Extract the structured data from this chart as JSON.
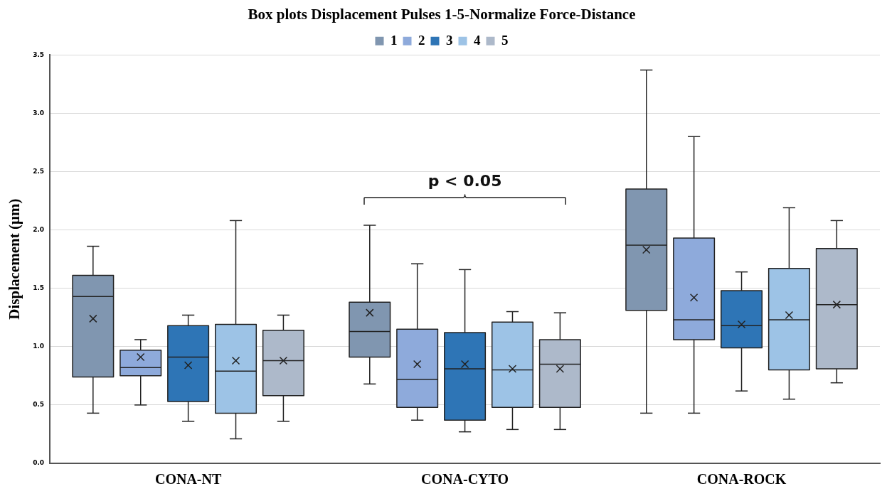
{
  "chart_data": {
    "type": "box",
    "title": "Box plots Displacement Pulses 1-5-Normalize Force-Distance",
    "ylabel": "Displacement (µm)",
    "categories": [
      "CONA-NT",
      "CONA-CYTO",
      "CONA-ROCK"
    ],
    "ylim": [
      0,
      3.5
    ],
    "yticks": [
      {
        "value": 0,
        "label": "0.0"
      },
      {
        "value": 0.5,
        "label": "0.5"
      },
      {
        "value": 1,
        "label": "1.0"
      },
      {
        "value": 1.5,
        "label": "1.5"
      },
      {
        "value": 2,
        "label": "2.0"
      },
      {
        "value": 2.5,
        "label": "2.5"
      },
      {
        "value": 3,
        "label": "3.0"
      },
      {
        "value": 3.5,
        "label": "3.5"
      }
    ],
    "grid": "y",
    "legend": "top",
    "annotations": [
      "p < 0.05"
    ],
    "series": [
      {
        "name": "1",
        "color": "#8096b0",
        "boxes": [
          {
            "low": 0.43,
            "q1": 0.74,
            "median": 1.43,
            "q3": 1.61,
            "high": 1.86,
            "mean": 1.24
          },
          {
            "low": 0.68,
            "q1": 0.91,
            "median": 1.13,
            "q3": 1.38,
            "high": 2.04,
            "mean": 1.29
          },
          {
            "low": 0.43,
            "q1": 1.31,
            "median": 1.87,
            "q3": 2.35,
            "high": 3.37,
            "mean": 1.83
          }
        ]
      },
      {
        "name": "2",
        "color": "#8eaadb",
        "boxes": [
          {
            "low": 0.5,
            "q1": 0.75,
            "median": 0.82,
            "q3": 0.97,
            "high": 1.06,
            "mean": 0.91
          },
          {
            "low": 0.37,
            "q1": 0.48,
            "median": 0.72,
            "q3": 1.15,
            "high": 1.71,
            "mean": 0.85
          },
          {
            "low": 0.43,
            "q1": 1.06,
            "median": 1.23,
            "q3": 1.93,
            "high": 2.8,
            "mean": 1.42
          }
        ]
      },
      {
        "name": "3",
        "color": "#2e75b6",
        "boxes": [
          {
            "low": 0.36,
            "q1": 0.53,
            "median": 0.91,
            "q3": 1.18,
            "high": 1.27,
            "mean": 0.84
          },
          {
            "low": 0.27,
            "q1": 0.37,
            "median": 0.81,
            "q3": 1.12,
            "high": 1.66,
            "mean": 0.85
          },
          {
            "low": 0.62,
            "q1": 0.99,
            "median": 1.18,
            "q3": 1.48,
            "high": 1.64,
            "mean": 1.19
          }
        ]
      },
      {
        "name": "4",
        "color": "#9dc3e6",
        "boxes": [
          {
            "low": 0.21,
            "q1": 0.43,
            "median": 0.79,
            "q3": 1.19,
            "high": 2.08,
            "mean": 0.88
          },
          {
            "low": 0.29,
            "q1": 0.48,
            "median": 0.8,
            "q3": 1.21,
            "high": 1.3,
            "mean": 0.81
          },
          {
            "low": 0.55,
            "q1": 0.8,
            "median": 1.23,
            "q3": 1.67,
            "high": 2.19,
            "mean": 1.27
          }
        ]
      },
      {
        "name": "5",
        "color": "#adb9ca",
        "boxes": [
          {
            "low": 0.36,
            "q1": 0.58,
            "median": 0.88,
            "q3": 1.14,
            "high": 1.27,
            "mean": 0.88
          },
          {
            "low": 0.29,
            "q1": 0.48,
            "median": 0.85,
            "q3": 1.06,
            "high": 1.29,
            "mean": 0.81
          },
          {
            "low": 0.69,
            "q1": 0.81,
            "median": 1.36,
            "q3": 1.84,
            "high": 2.08,
            "mean": 1.36
          }
        ]
      }
    ]
  }
}
